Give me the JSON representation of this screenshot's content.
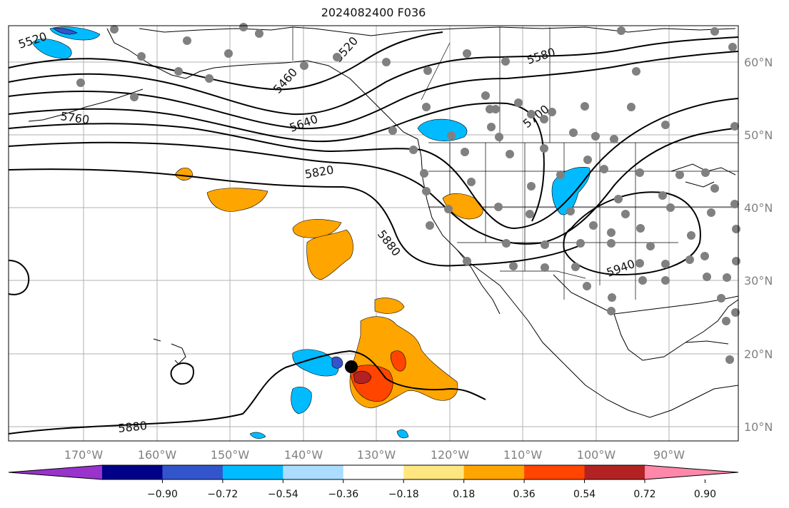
{
  "title": "2024082400 F036",
  "map": {
    "lat_labels": [
      "60°N",
      "50°N",
      "40°N",
      "30°N",
      "20°N",
      "10°N"
    ],
    "lon_labels": [
      "170°W",
      "160°W",
      "150°W",
      "140°W",
      "130°W",
      "120°W",
      "110°W",
      "100°W",
      "90°W"
    ],
    "contour_labels": [
      "5520",
      "5460",
      "5520",
      "5580",
      "5640",
      "5700",
      "5760",
      "5820",
      "5880",
      "5940",
      "5880"
    ],
    "marker": "storm-center"
  },
  "colorbar": {
    "ticks": [
      "−0.90",
      "−0.72",
      "−0.54",
      "−0.36",
      "−0.18",
      "0.18",
      "0.36",
      "0.54",
      "0.72",
      "0.90"
    ],
    "colors": [
      "#9933cc",
      "#000088",
      "#3355cc",
      "#00bbff",
      "#aaddff",
      "#ffffff",
      "#ffe680",
      "#ffa500",
      "#ff4500",
      "#b22222",
      "#ff88aa"
    ]
  }
}
